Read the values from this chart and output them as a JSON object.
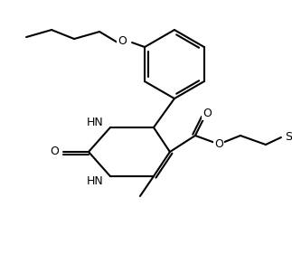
{
  "bg_color": "#ffffff",
  "line_color": "#000000",
  "figsize": [
    3.23,
    2.81
  ],
  "dpi": 100,
  "lw": 1.5,
  "font_size": 9,
  "atoms": {
    "O_ether": "O",
    "HN_top": "HN",
    "HN_bot": "HN",
    "O_carbonyl_urea": "O",
    "O_ester": "O",
    "O_ester_carbonyl": "O",
    "S": "S"
  }
}
